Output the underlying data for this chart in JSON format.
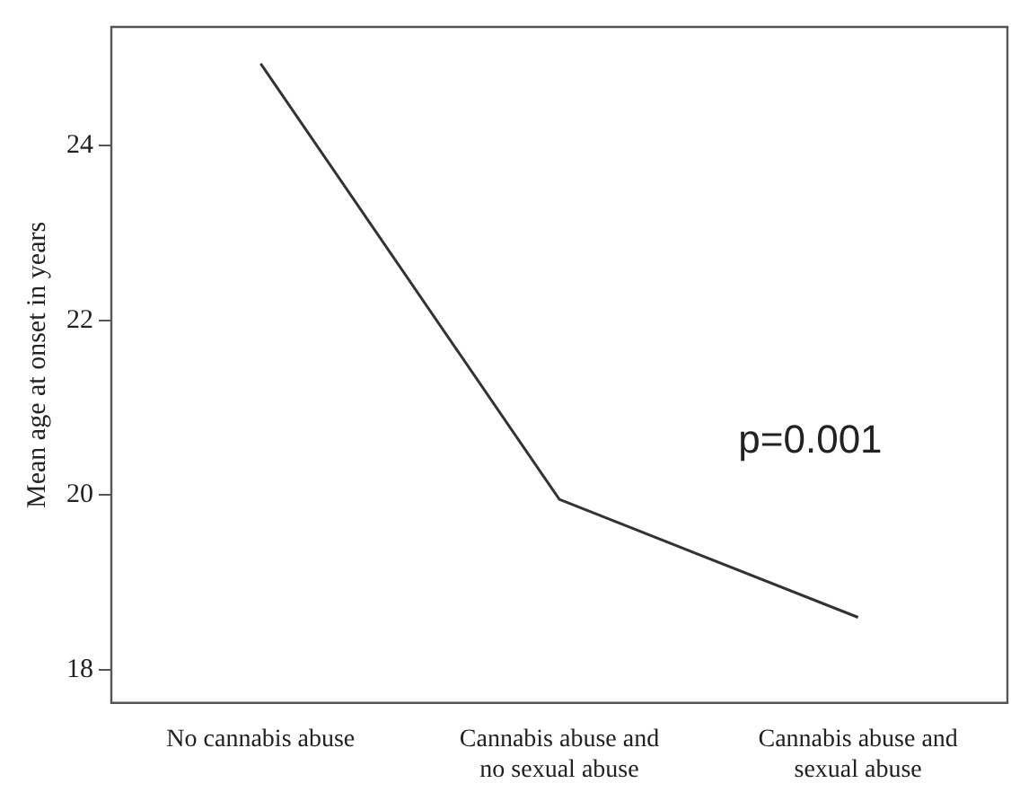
{
  "chart_data": {
    "type": "line",
    "ylabel": "Mean age at onset in years",
    "categories": [
      "No cannabis abuse",
      "Cannabis abuse and no sexual abuse",
      "Cannabis abuse and sexual abuse"
    ],
    "series": [
      {
        "color": "#333333",
        "values": [
          24.94,
          19.95,
          18.6
        ]
      }
    ],
    "ylim": [
      17.62,
      25.36
    ],
    "yticks": [
      18,
      20,
      22,
      24
    ],
    "grid": false,
    "legend": false,
    "marker": "none",
    "line_style": "solid",
    "annotations": [
      "p=0.001"
    ]
  }
}
